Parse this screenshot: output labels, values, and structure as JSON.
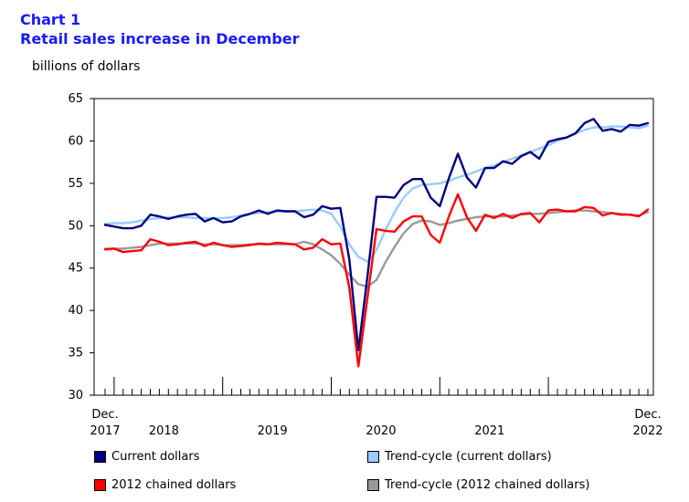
{
  "header": {
    "chart_label": "Chart 1",
    "title": "Retail sales increase in December",
    "units": "billions of dollars"
  },
  "chart_data": {
    "type": "line",
    "title": "Retail sales increase in December",
    "ylabel": "billions of dollars",
    "ylim": [
      30,
      65
    ],
    "y_ticks": [
      "30",
      "35",
      "40",
      "45",
      "50",
      "55",
      "60",
      "65"
    ],
    "x_labels": [
      {
        "month_index": 0,
        "line1": "Dec.",
        "line2": "2017"
      },
      {
        "month_index": 6.5,
        "line1": "",
        "line2": "2018"
      },
      {
        "month_index": 18.5,
        "line1": "",
        "line2": "2019"
      },
      {
        "month_index": 30.5,
        "line1": "",
        "line2": "2020"
      },
      {
        "month_index": 42.5,
        "line1": "",
        "line2": "2021"
      },
      {
        "month_index": 60,
        "line1": "Dec.",
        "line2": "2022"
      }
    ],
    "x_start": "2017-12",
    "x_end": "2022-12",
    "series": [
      {
        "name": "Current dollars",
        "color": "#000080",
        "values": [
          50.1,
          49.9,
          49.7,
          49.7,
          50.0,
          51.3,
          51.1,
          50.8,
          51.1,
          51.3,
          51.4,
          50.5,
          50.9,
          50.4,
          50.5,
          51.1,
          51.4,
          51.8,
          51.4,
          51.8,
          51.7,
          51.7,
          51.0,
          51.3,
          52.3,
          52.0,
          52.1,
          46.0,
          35.3,
          44.0,
          53.4,
          53.4,
          53.3,
          54.8,
          55.5,
          55.5,
          53.3,
          52.3,
          55.6,
          58.5,
          55.7,
          54.5,
          56.8,
          56.8,
          57.6,
          57.3,
          58.2,
          58.7,
          57.9,
          59.9,
          60.2,
          60.4,
          60.9,
          62.1,
          62.6,
          61.2,
          61.4,
          61.1,
          61.9,
          61.8,
          62.1
        ]
      },
      {
        "name": "Trend-cycle (current dollars)",
        "color": "#99ccff",
        "values": [
          50.2,
          50.3,
          50.3,
          50.4,
          50.6,
          50.8,
          50.9,
          51.0,
          51.0,
          51.0,
          50.9,
          50.9,
          50.9,
          50.9,
          51.0,
          51.2,
          51.4,
          51.5,
          51.6,
          51.7,
          51.7,
          51.7,
          51.8,
          51.9,
          51.8,
          51.4,
          49.9,
          47.8,
          46.3,
          45.8,
          47.1,
          49.5,
          51.6,
          53.3,
          54.4,
          54.8,
          54.9,
          55.0,
          55.3,
          55.7,
          56.0,
          56.4,
          56.8,
          57.1,
          57.5,
          57.9,
          58.3,
          58.7,
          59.1,
          59.5,
          60.0,
          60.4,
          60.9,
          61.3,
          61.6,
          61.6,
          61.7,
          61.7,
          61.6,
          61.5,
          61.8
        ]
      },
      {
        "name": "2012 chained dollars",
        "color": "#ff0000",
        "values": [
          47.2,
          47.3,
          46.9,
          47.0,
          47.1,
          48.4,
          48.1,
          47.7,
          47.8,
          48.0,
          48.1,
          47.6,
          48.0,
          47.7,
          47.5,
          47.6,
          47.7,
          47.9,
          47.8,
          48.0,
          47.9,
          47.8,
          47.2,
          47.4,
          48.4,
          47.8,
          47.9,
          42.7,
          33.4,
          41.5,
          49.6,
          49.4,
          49.3,
          50.5,
          51.1,
          51.1,
          48.9,
          48.0,
          51.1,
          53.7,
          51.0,
          49.4,
          51.3,
          50.9,
          51.4,
          50.9,
          51.4,
          51.5,
          50.4,
          51.8,
          51.9,
          51.7,
          51.7,
          52.2,
          52.1,
          51.2,
          51.5,
          51.3,
          51.3,
          51.1,
          51.9
        ]
      },
      {
        "name": "Trend-cycle (2012 chained dollars)",
        "color": "#999999",
        "values": [
          47.3,
          47.3,
          47.3,
          47.4,
          47.5,
          47.7,
          47.9,
          47.9,
          47.9,
          47.9,
          47.9,
          47.8,
          47.8,
          47.7,
          47.7,
          47.7,
          47.8,
          47.8,
          47.8,
          47.8,
          47.8,
          47.8,
          48.1,
          47.8,
          47.2,
          46.5,
          45.5,
          44.2,
          43.1,
          42.8,
          43.6,
          45.7,
          47.5,
          49.1,
          50.2,
          50.6,
          50.5,
          50.1,
          50.3,
          50.6,
          50.8,
          51.0,
          51.1,
          51.1,
          51.1,
          51.2,
          51.3,
          51.4,
          51.4,
          51.5,
          51.6,
          51.7,
          51.8,
          51.8,
          51.7,
          51.6,
          51.5,
          51.4,
          51.3,
          51.2,
          51.6
        ]
      }
    ]
  },
  "legend": [
    {
      "label": "Current dollars",
      "color": "#000080"
    },
    {
      "label": "Trend-cycle (current dollars)",
      "color": "#99ccff"
    },
    {
      "label": "2012 chained dollars",
      "color": "#ff0000"
    },
    {
      "label": "Trend-cycle (2012 chained dollars)",
      "color": "#999999"
    }
  ]
}
